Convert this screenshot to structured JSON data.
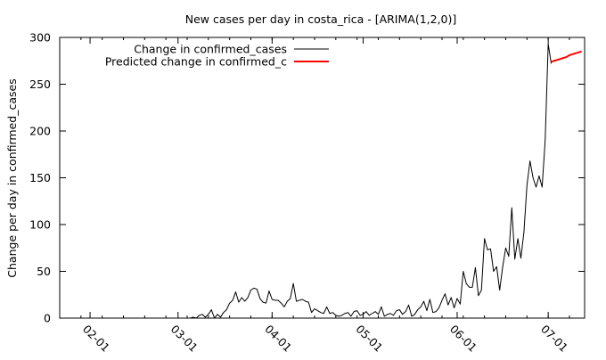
{
  "chart_data": {
    "type": "line",
    "title": "New cases per day in costa_rica -  [ARIMA(1,2,0)]",
    "xlabel": "",
    "ylabel": "Change per day in confirmed_cases",
    "x_scale": "date",
    "xlim": [
      "2020-01-22",
      "2020-07-13"
    ],
    "ylim": [
      0,
      300
    ],
    "x_ticks": [
      {
        "date": "2020-02-01",
        "label": "02-01"
      },
      {
        "date": "2020-03-01",
        "label": "03-01"
      },
      {
        "date": "2020-04-01",
        "label": "04-01"
      },
      {
        "date": "2020-05-01",
        "label": "05-01"
      },
      {
        "date": "2020-06-01",
        "label": "06-01"
      },
      {
        "date": "2020-07-01",
        "label": "07-01"
      }
    ],
    "y_ticks": [
      0,
      50,
      100,
      150,
      200,
      250,
      300
    ],
    "legend_position": "top-left",
    "grid": false,
    "series": [
      {
        "name": "Change in confirmed_cases",
        "color": "#000000",
        "points": [
          [
            "2020-01-22",
            0
          ],
          [
            "2020-02-01",
            0
          ],
          [
            "2020-02-15",
            0
          ],
          [
            "2020-03-01",
            0
          ],
          [
            "2020-03-02",
            0
          ],
          [
            "2020-03-03",
            0
          ],
          [
            "2020-03-04",
            0
          ],
          [
            "2020-03-05",
            0
          ],
          [
            "2020-03-06",
            1
          ],
          [
            "2020-03-07",
            0
          ],
          [
            "2020-03-08",
            3
          ],
          [
            "2020-03-09",
            4
          ],
          [
            "2020-03-10",
            1
          ],
          [
            "2020-03-11",
            4
          ],
          [
            "2020-03-12",
            9
          ],
          [
            "2020-03-13",
            0
          ],
          [
            "2020-03-14",
            4
          ],
          [
            "2020-03-15",
            1
          ],
          [
            "2020-03-16",
            6
          ],
          [
            "2020-03-17",
            9
          ],
          [
            "2020-03-18",
            16
          ],
          [
            "2020-03-19",
            19
          ],
          [
            "2020-03-20",
            28
          ],
          [
            "2020-03-21",
            17
          ],
          [
            "2020-03-22",
            22
          ],
          [
            "2020-03-23",
            18
          ],
          [
            "2020-03-24",
            22
          ],
          [
            "2020-03-25",
            30
          ],
          [
            "2020-03-26",
            32
          ],
          [
            "2020-03-27",
            31
          ],
          [
            "2020-03-28",
            21
          ],
          [
            "2020-03-29",
            17
          ],
          [
            "2020-03-30",
            16
          ],
          [
            "2020-03-31",
            29
          ],
          [
            "2020-04-01",
            20
          ],
          [
            "2020-04-02",
            19
          ],
          [
            "2020-04-03",
            19
          ],
          [
            "2020-04-04",
            16
          ],
          [
            "2020-04-05",
            12
          ],
          [
            "2020-04-06",
            18
          ],
          [
            "2020-04-07",
            21
          ],
          [
            "2020-04-08",
            37
          ],
          [
            "2020-04-09",
            18
          ],
          [
            "2020-04-10",
            19
          ],
          [
            "2020-04-11",
            20
          ],
          [
            "2020-04-12",
            18
          ],
          [
            "2020-04-13",
            17
          ],
          [
            "2020-04-14",
            6
          ],
          [
            "2020-04-15",
            10
          ],
          [
            "2020-04-16",
            8
          ],
          [
            "2020-04-17",
            6
          ],
          [
            "2020-04-18",
            5
          ],
          [
            "2020-04-19",
            12
          ],
          [
            "2020-04-20",
            5
          ],
          [
            "2020-04-21",
            6
          ],
          [
            "2020-04-22",
            3
          ],
          [
            "2020-04-23",
            2
          ],
          [
            "2020-04-24",
            3
          ],
          [
            "2020-04-25",
            5
          ],
          [
            "2020-04-26",
            6
          ],
          [
            "2020-04-27",
            2
          ],
          [
            "2020-04-28",
            7
          ],
          [
            "2020-04-29",
            8
          ],
          [
            "2020-04-30",
            3
          ],
          [
            "2020-05-01",
            4
          ],
          [
            "2020-05-02",
            7
          ],
          [
            "2020-05-03",
            3
          ],
          [
            "2020-05-04",
            5
          ],
          [
            "2020-05-05",
            7
          ],
          [
            "2020-05-06",
            4
          ],
          [
            "2020-05-07",
            12
          ],
          [
            "2020-05-08",
            2
          ],
          [
            "2020-05-09",
            4
          ],
          [
            "2020-05-10",
            5
          ],
          [
            "2020-05-11",
            3
          ],
          [
            "2020-05-12",
            8
          ],
          [
            "2020-05-13",
            9
          ],
          [
            "2020-05-14",
            4
          ],
          [
            "2020-05-15",
            7
          ],
          [
            "2020-05-16",
            14
          ],
          [
            "2020-05-17",
            2
          ],
          [
            "2020-05-18",
            4
          ],
          [
            "2020-05-19",
            9
          ],
          [
            "2020-05-20",
            12
          ],
          [
            "2020-05-21",
            18
          ],
          [
            "2020-05-22",
            8
          ],
          [
            "2020-05-23",
            20
          ],
          [
            "2020-05-24",
            6
          ],
          [
            "2020-05-25",
            7
          ],
          [
            "2020-05-26",
            11
          ],
          [
            "2020-05-27",
            19
          ],
          [
            "2020-05-28",
            26
          ],
          [
            "2020-05-29",
            14
          ],
          [
            "2020-05-30",
            22
          ],
          [
            "2020-05-31",
            11
          ],
          [
            "2020-06-01",
            21
          ],
          [
            "2020-06-02",
            15
          ],
          [
            "2020-06-03",
            50
          ],
          [
            "2020-06-04",
            37
          ],
          [
            "2020-06-05",
            33
          ],
          [
            "2020-06-06",
            33
          ],
          [
            "2020-06-07",
            54
          ],
          [
            "2020-06-08",
            24
          ],
          [
            "2020-06-09",
            30
          ],
          [
            "2020-06-10",
            85
          ],
          [
            "2020-06-11",
            73
          ],
          [
            "2020-06-12",
            74
          ],
          [
            "2020-06-13",
            50
          ],
          [
            "2020-06-14",
            55
          ],
          [
            "2020-06-15",
            30
          ],
          [
            "2020-06-16",
            55
          ],
          [
            "2020-06-17",
            75
          ],
          [
            "2020-06-18",
            66
          ],
          [
            "2020-06-19",
            118
          ],
          [
            "2020-06-20",
            63
          ],
          [
            "2020-06-21",
            85
          ],
          [
            "2020-06-22",
            64
          ],
          [
            "2020-06-23",
            92
          ],
          [
            "2020-06-24",
            142
          ],
          [
            "2020-06-25",
            168
          ],
          [
            "2020-06-26",
            150
          ],
          [
            "2020-06-27",
            140
          ],
          [
            "2020-06-28",
            152
          ],
          [
            "2020-06-29",
            140
          ],
          [
            "2020-06-30",
            190
          ],
          [
            "2020-07-01",
            293
          ],
          [
            "2020-07-02",
            272
          ]
        ]
      },
      {
        "name": "Predicted change in confirmed_c",
        "color": "#ff0000",
        "points": [
          [
            "2020-07-02",
            274
          ],
          [
            "2020-07-03",
            275
          ],
          [
            "2020-07-04",
            276
          ],
          [
            "2020-07-05",
            277
          ],
          [
            "2020-07-06",
            278
          ],
          [
            "2020-07-07",
            279
          ],
          [
            "2020-07-08",
            281
          ],
          [
            "2020-07-09",
            282
          ],
          [
            "2020-07-10",
            283
          ],
          [
            "2020-07-11",
            284
          ],
          [
            "2020-07-12",
            285
          ]
        ]
      }
    ]
  }
}
